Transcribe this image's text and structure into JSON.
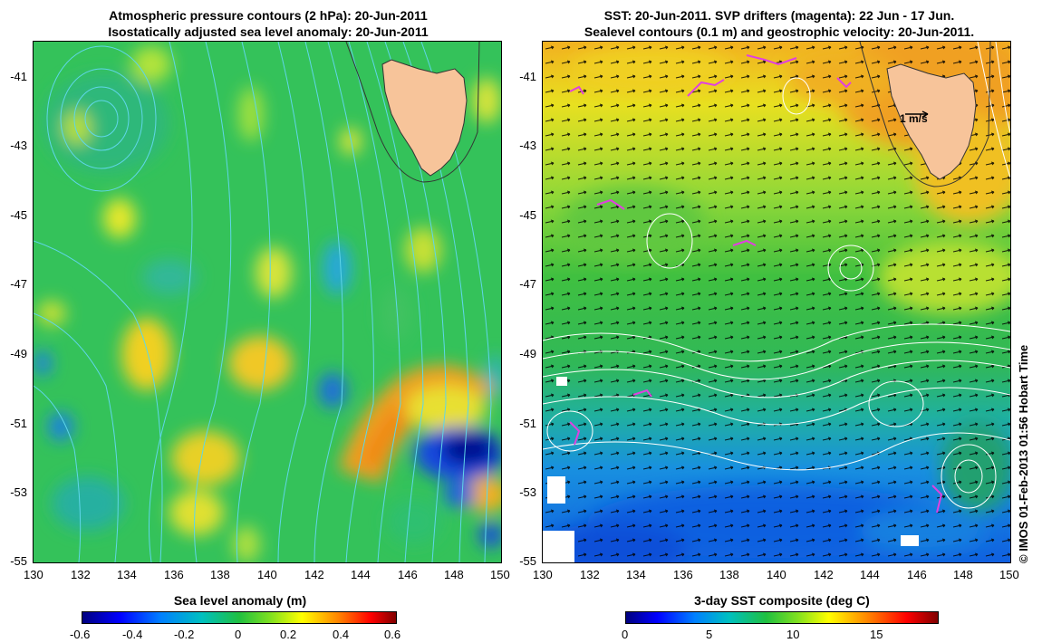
{
  "left_panel": {
    "title_line1": "Atmospheric pressure contours (2 hPa): 20-Jun-2011",
    "title_line2": "Isostatically adjusted sea level anomaly: 20-Jun-2011",
    "colorbar_title": "Sea level anomaly (m)",
    "colorbar_ticks": [
      "-0.6",
      "-0.4",
      "-0.2",
      "0",
      "0.2",
      "0.4",
      "0.6"
    ],
    "colorbar_range": [
      -0.6,
      0.6
    ]
  },
  "right_panel": {
    "title_line1": "SST: 20-Jun-2011. SVP drifters (magenta): 22 Jun - 17 Jun.",
    "title_line2": "Sealevel contours (0.1 m) and geostrophic velocity: 20-Jun-2011.",
    "colorbar_title": "3-day SST composite (deg C)",
    "colorbar_ticks": [
      "0",
      "5",
      "10",
      "15"
    ],
    "colorbar_range": [
      0,
      18.5
    ],
    "scale_arrow_label": "1 m/s"
  },
  "x_ticks": [
    "130",
    "132",
    "134",
    "136",
    "138",
    "140",
    "142",
    "144",
    "146",
    "148",
    "150"
  ],
  "y_ticks": [
    "-41",
    "-43",
    "-45",
    "-47",
    "-49",
    "-51",
    "-53",
    "-55"
  ],
  "lon_range": [
    130,
    150
  ],
  "lat_range": [
    -55,
    -40
  ],
  "credit": "© IMOS 01-Feb-2013 01:56 Hobart Time",
  "colors": {
    "land": "#f7c49a",
    "pressure_contours": "#5fd6e8",
    "sst_contours": "#ffffff",
    "drifters": "#e040e0",
    "vectors": "#000000"
  }
}
